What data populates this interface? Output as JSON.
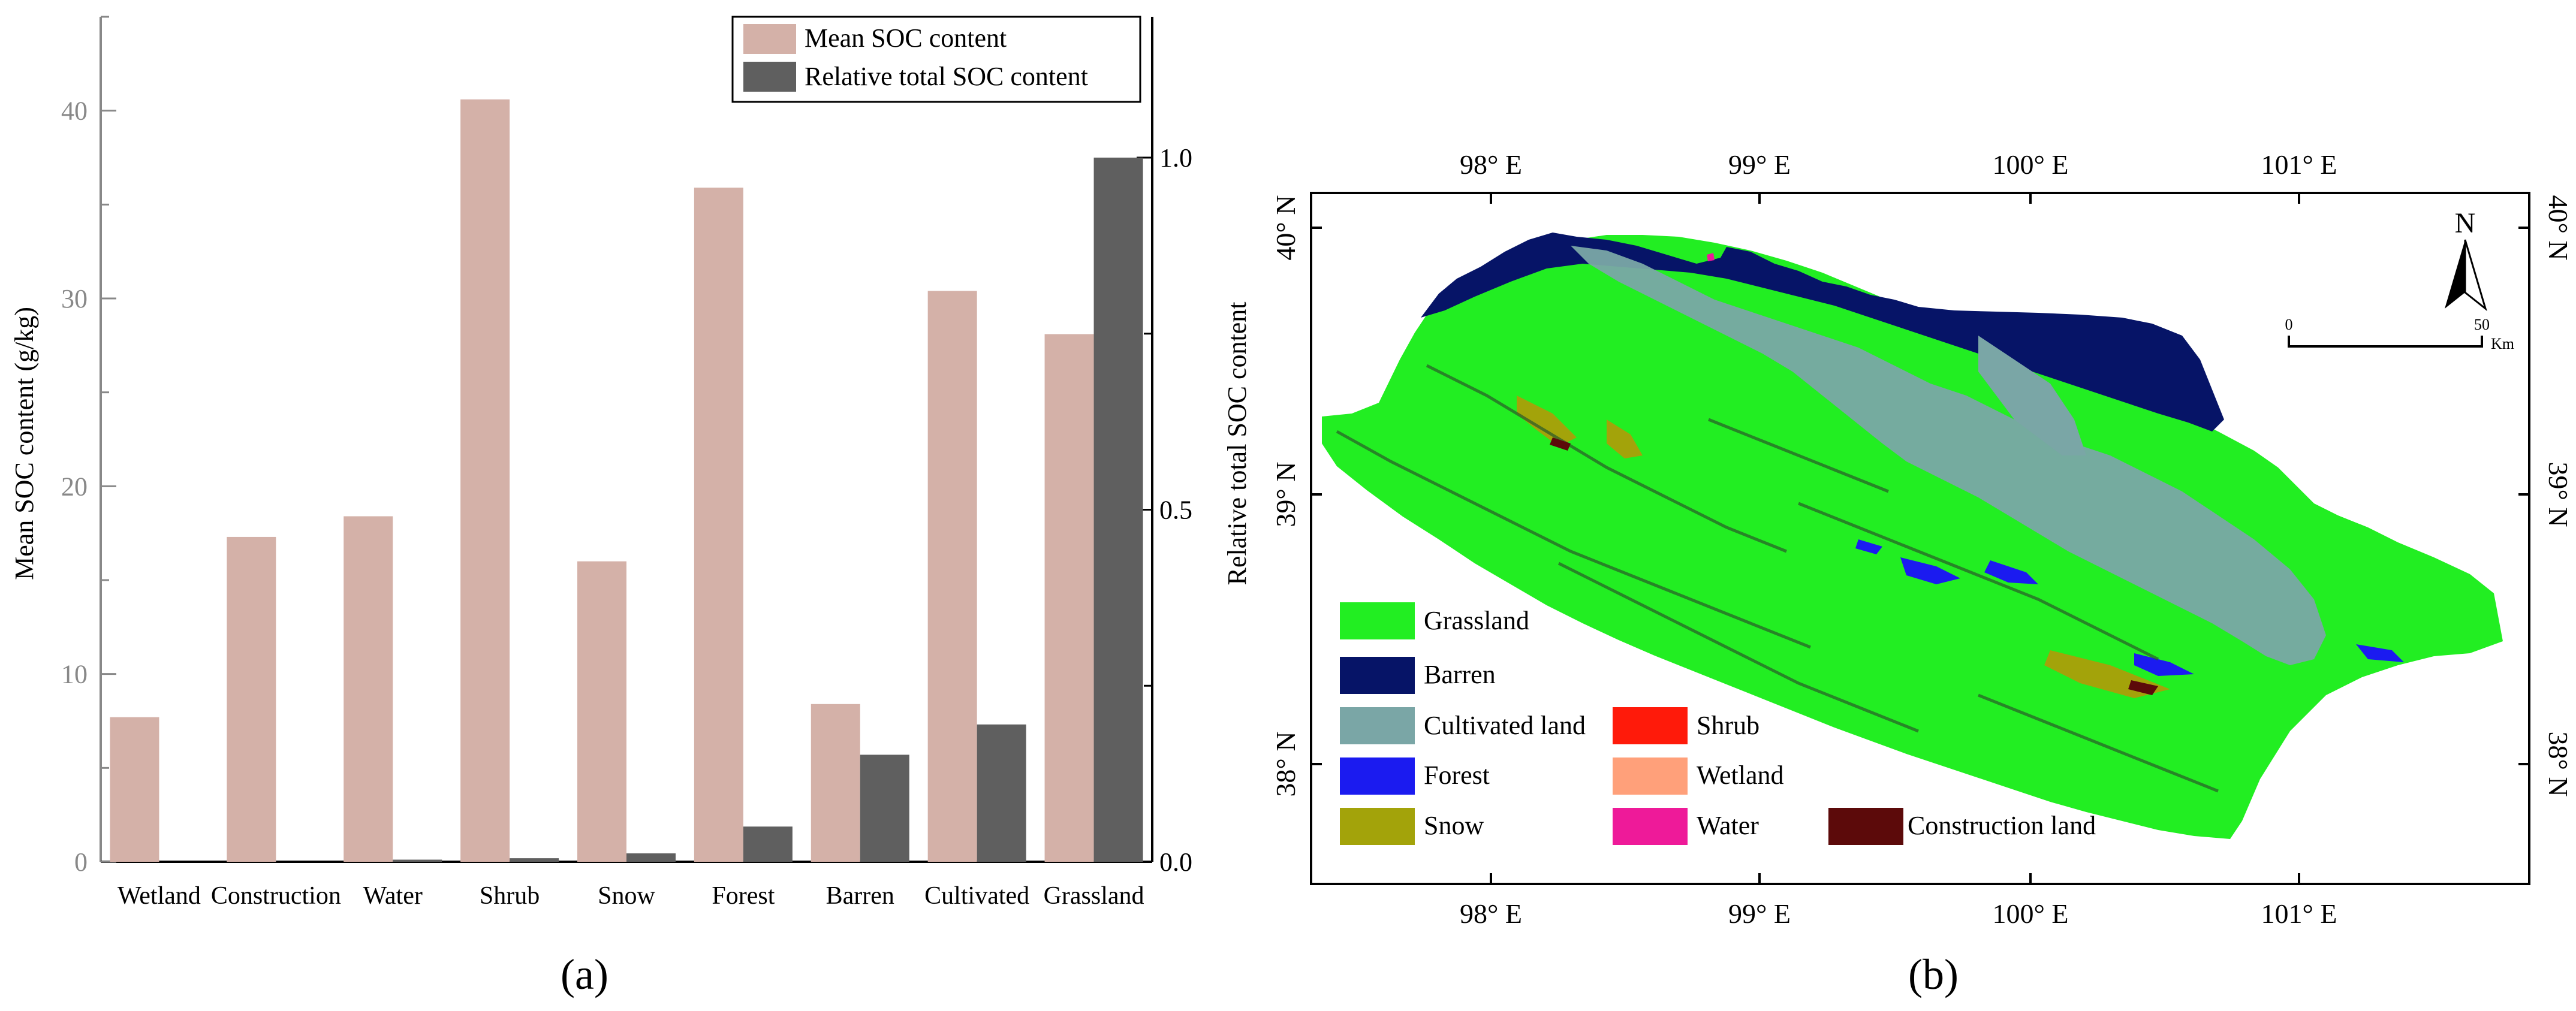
{
  "panel_a": {
    "label": "(a)",
    "chart_data": {
      "type": "bar",
      "title": "",
      "categories": [
        "Wetland",
        "Construction",
        "Water",
        "Shrub",
        "Snow",
        "Forest",
        "Barren",
        "Cultivated",
        "Grassland"
      ],
      "xlabel": "",
      "ylabel": "Mean SOC content (g/kg)",
      "ylabel_right": "Relative total SOC content",
      "ylim": [
        0,
        45
      ],
      "ylim_right": [
        0,
        1.2
      ],
      "yticks": [
        "0",
        "10",
        "20",
        "30",
        "40"
      ],
      "yticks_right": [
        "0.0",
        "0.5",
        "1.0"
      ],
      "legend_position": "top-right",
      "series": [
        {
          "name": "Mean SOC content",
          "axis": "left",
          "color": "#d4b1a8",
          "values": [
            7.7,
            17.3,
            18.4,
            40.6,
            16.0,
            35.9,
            8.4,
            30.4,
            28.1
          ]
        },
        {
          "name": "Relative total SOC content",
          "axis": "right",
          "color": "#5f5f5f",
          "values": [
            0.0,
            0.0,
            0.003,
            0.005,
            0.012,
            0.05,
            0.152,
            0.195,
            1.0
          ]
        }
      ]
    }
  },
  "panel_b": {
    "label": "(b)",
    "top_lon_labels": [
      "98° E",
      "99° E",
      "100° E",
      "101° E"
    ],
    "bottom_lon_labels": [
      "98° E",
      "99° E",
      "100° E",
      "101° E"
    ],
    "left_lat_labels": [
      "40° N",
      "39° N",
      "38° N"
    ],
    "right_lat_labels": [
      "40° N",
      "39° N",
      "38° N"
    ],
    "north_label": "N",
    "scale": {
      "start": "0",
      "end": "50",
      "unit": "Km"
    },
    "legend": [
      {
        "label": "Grassland",
        "color": "#22ee22"
      },
      {
        "label": "Barren",
        "color": "#061467"
      },
      {
        "label": "Cultivated land",
        "color": "#7aa6a6"
      },
      {
        "label": "Forest",
        "color": "#1b1bf0"
      },
      {
        "label": "Snow",
        "color": "#a3a30a"
      },
      {
        "label": "Shrub",
        "color": "#ff1a0a"
      },
      {
        "label": "Wetland",
        "color": "#ffa07a"
      },
      {
        "label": "Water",
        "color": "#ee1a99"
      },
      {
        "label": "Construction land",
        "color": "#5c0a0a"
      }
    ]
  }
}
